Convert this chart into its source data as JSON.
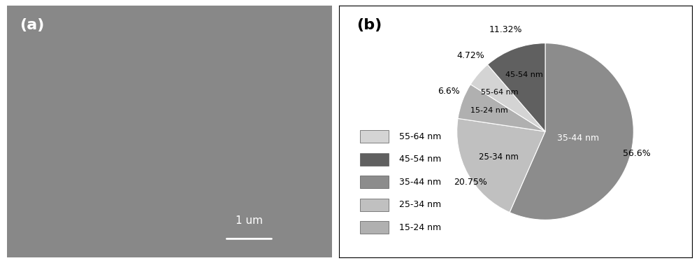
{
  "panel_b": {
    "slices": [
      {
        "label": "35-44 nm",
        "pct": 56.6,
        "color": "#8c8c8c"
      },
      {
        "label": "25-34 nm",
        "pct": 20.75,
        "color": "#c0c0c0"
      },
      {
        "label": "15-24 nm",
        "pct": 6.6,
        "color": "#b0b0b0"
      },
      {
        "label": "55-64 nm",
        "pct": 4.72,
        "color": "#d4d4d4"
      },
      {
        "label": "45-54 nm",
        "pct": 11.32,
        "color": "#606060"
      }
    ],
    "legend_order": [
      "55-64 nm",
      "45-54 nm",
      "35-44 nm",
      "25-34 nm",
      "15-24 nm"
    ],
    "legend_colors": {
      "55-64 nm": "#d4d4d4",
      "45-54 nm": "#606060",
      "35-44 nm": "#8c8c8c",
      "25-34 nm": "#c0c0c0",
      "15-24 nm": "#b0b0b0"
    },
    "pct_labels": {
      "35-44 nm": "56.6%",
      "25-34 nm": "20.75%",
      "15-24 nm": "6.6%",
      "55-64 nm": "4.72%",
      "45-54 nm": "11.32%"
    },
    "inside_labels": [
      "35-44 nm",
      "25-34 nm",
      "15-24 nm",
      "55-64 nm",
      "45-54 nm"
    ],
    "startangle": 90,
    "background_color": "#ffffff"
  },
  "panel_a": {
    "bg_color": "#888888",
    "label": "(a)",
    "label_color": "#ffffff",
    "scalebar_color": "#ffffff",
    "scalebar_text": "1 um"
  }
}
